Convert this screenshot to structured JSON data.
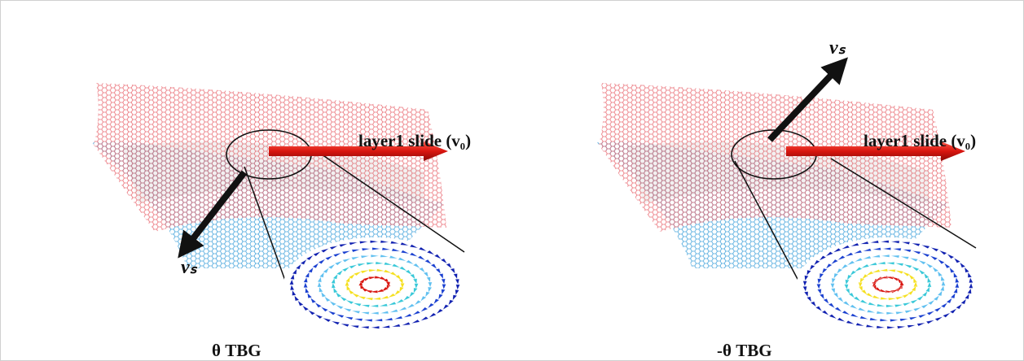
{
  "panels": [
    {
      "slide_label": "layer1 slide (v₀)",
      "velocity_label": "vₛ",
      "caption": "θ TBG"
    },
    {
      "slide_label": "layer1 slide (v₀)",
      "velocity_label": "vₛ",
      "caption": "-θ TBG"
    }
  ]
}
